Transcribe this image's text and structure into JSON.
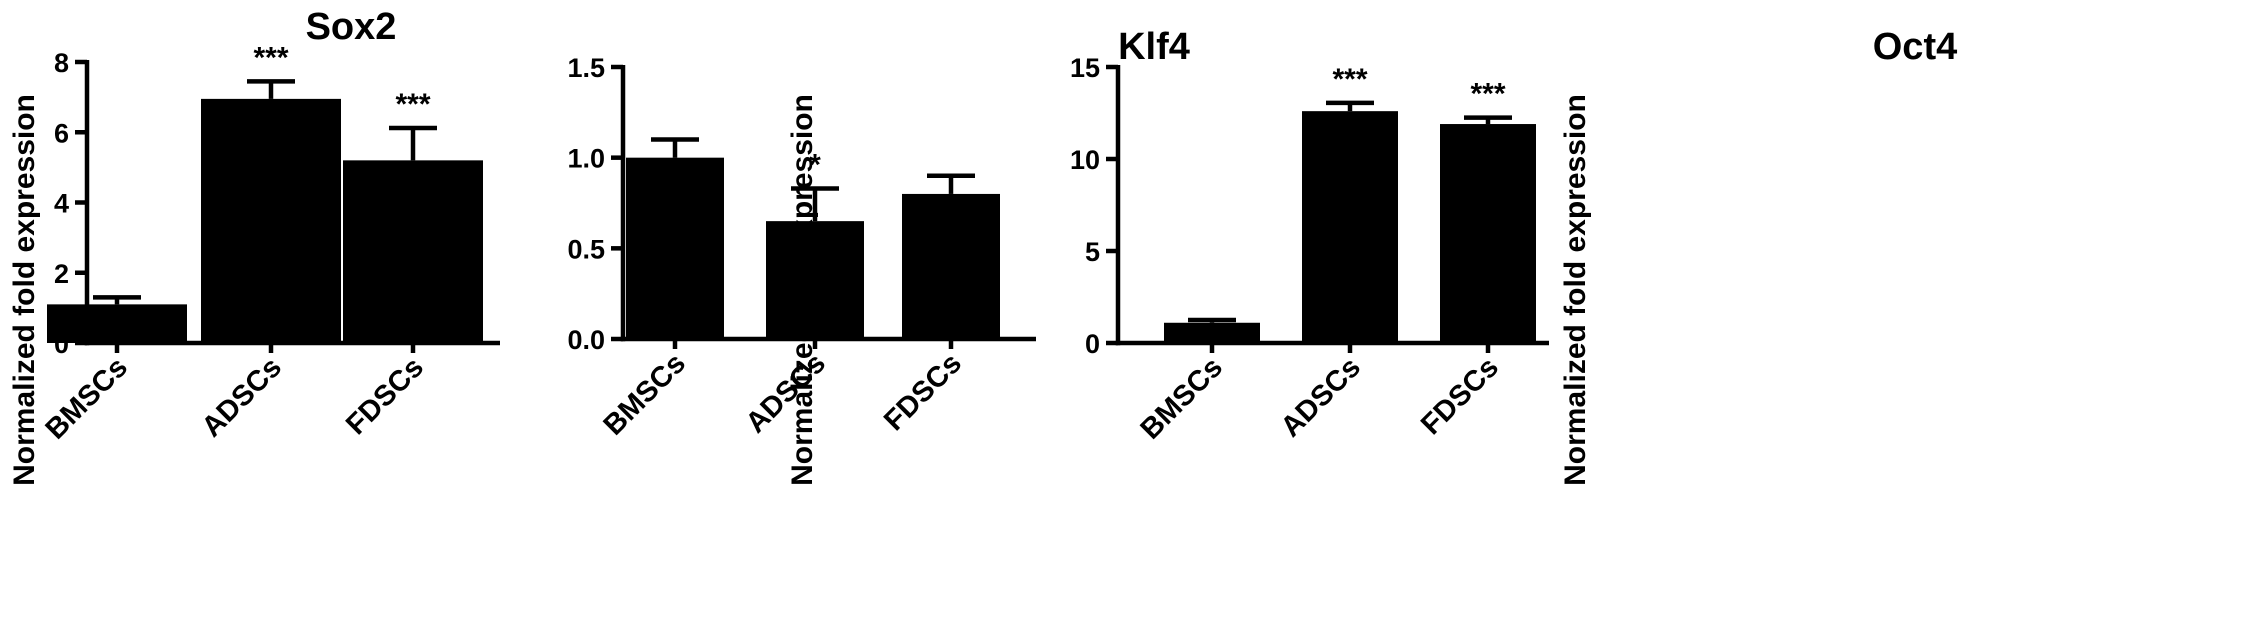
{
  "chart_data": [
    {
      "type": "bar",
      "title": "Sox2",
      "ylabel": "Normalized fold expression",
      "xlabel": "",
      "categories": [
        "BMSCs",
        "ADSCs",
        "FDSCs"
      ],
      "values": [
        1.1,
        6.95,
        5.2
      ],
      "errors": [
        0.2,
        0.5,
        0.92
      ],
      "significance": [
        "",
        "***",
        "***"
      ],
      "ylim": [
        0,
        8
      ],
      "yticks": [
        0,
        2,
        4,
        6,
        8
      ],
      "ytick_labels": [
        "0",
        "2",
        "4",
        "6",
        "8"
      ],
      "bar_color": "#000000",
      "grid": false
    },
    {
      "type": "bar",
      "title": "Klf4",
      "ylabel": "Normalized fold expression",
      "xlabel": "",
      "categories": [
        "BMSCs",
        "ADSCs",
        "FDSCs"
      ],
      "values": [
        1.0,
        0.65,
        0.8
      ],
      "errors": [
        0.1,
        0.18,
        0.1
      ],
      "significance": [
        "",
        "*",
        ""
      ],
      "ylim": [
        0,
        1.5
      ],
      "yticks": [
        0,
        0.5,
        1.0,
        1.5
      ],
      "ytick_labels": [
        "0.0",
        "0.5",
        "1.0",
        "1.5"
      ],
      "bar_color": "#000000",
      "grid": false
    },
    {
      "type": "bar",
      "title": "Oct4",
      "ylabel": "Normalized fold expression",
      "xlabel": "",
      "categories": [
        "BMSCs",
        "ADSCs",
        "FDSCs"
      ],
      "values": [
        1.1,
        12.6,
        11.9
      ],
      "errors": [
        0.15,
        0.45,
        0.35
      ],
      "significance": [
        "",
        "***",
        "***"
      ],
      "ylim": [
        0,
        15
      ],
      "yticks": [
        0,
        5,
        10,
        15
      ],
      "ytick_labels": [
        "0",
        "5",
        "10",
        "15"
      ],
      "bar_color": "#000000",
      "grid": false
    }
  ]
}
